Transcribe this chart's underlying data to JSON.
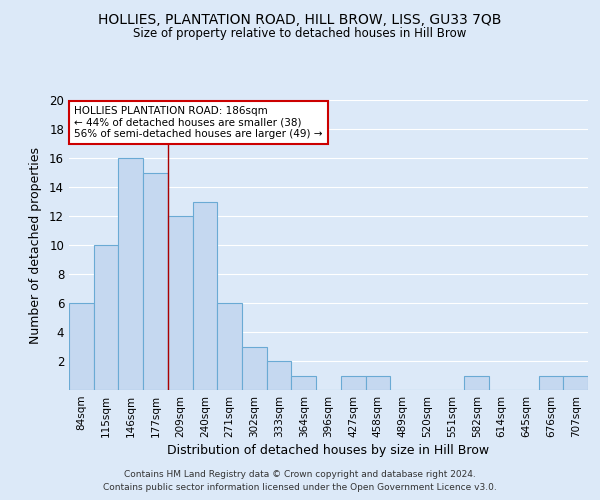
{
  "title": "HOLLIES, PLANTATION ROAD, HILL BROW, LISS, GU33 7QB",
  "subtitle": "Size of property relative to detached houses in Hill Brow",
  "xlabel": "Distribution of detached houses by size in Hill Brow",
  "ylabel": "Number of detached properties",
  "footnote1": "Contains HM Land Registry data © Crown copyright and database right 2024.",
  "footnote2": "Contains public sector information licensed under the Open Government Licence v3.0.",
  "categories": [
    "84sqm",
    "115sqm",
    "146sqm",
    "177sqm",
    "209sqm",
    "240sqm",
    "271sqm",
    "302sqm",
    "333sqm",
    "364sqm",
    "396sqm",
    "427sqm",
    "458sqm",
    "489sqm",
    "520sqm",
    "551sqm",
    "582sqm",
    "614sqm",
    "645sqm",
    "676sqm",
    "707sqm"
  ],
  "values": [
    6,
    10,
    16,
    15,
    12,
    13,
    6,
    3,
    2,
    1,
    0,
    1,
    1,
    0,
    0,
    0,
    1,
    0,
    0,
    1,
    1
  ],
  "bar_color": "#c5d8f0",
  "bar_edge_color": "#6aaad4",
  "background_color": "#dce9f8",
  "grid_color": "#ffffff",
  "annotation_text": "HOLLIES PLANTATION ROAD: 186sqm\n← 44% of detached houses are smaller (38)\n56% of semi-detached houses are larger (49) →",
  "annotation_box_facecolor": "#ffffff",
  "annotation_box_edgecolor": "#cc0000",
  "red_line_x": 3.5,
  "ylim": [
    0,
    20
  ],
  "yticks": [
    0,
    2,
    4,
    6,
    8,
    10,
    12,
    14,
    16,
    18,
    20
  ]
}
